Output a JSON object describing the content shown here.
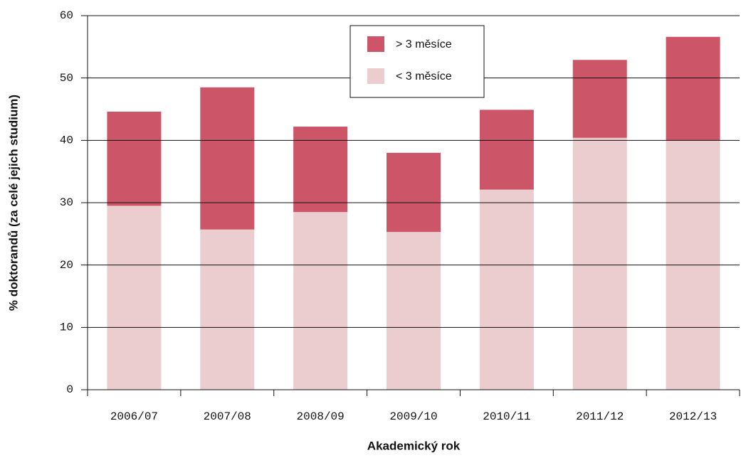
{
  "chart_data": {
    "type": "stacked-bar",
    "x_label": "Akademický rok",
    "y_label": "% doktorandů (za celé jejich studium)",
    "categories": [
      "2006/07",
      "2007/08",
      "2008/09",
      "2009/10",
      "2010/11",
      "2011/12",
      "2012/13"
    ],
    "series": [
      {
        "name": "< 3 měsíce",
        "color": "#ebcccf",
        "values": [
          29.5,
          25.7,
          28.5,
          25.3,
          32.1,
          40.4,
          40.0
        ]
      },
      {
        "name": "> 3 měsíce",
        "color": "#cc5567",
        "values": [
          15.1,
          22.8,
          13.7,
          12.7,
          12.8,
          12.5,
          16.6
        ]
      }
    ],
    "ylim": [
      0,
      60
    ],
    "yticks": [
      0,
      10,
      20,
      30,
      40,
      50,
      60
    ],
    "grid": true
  }
}
